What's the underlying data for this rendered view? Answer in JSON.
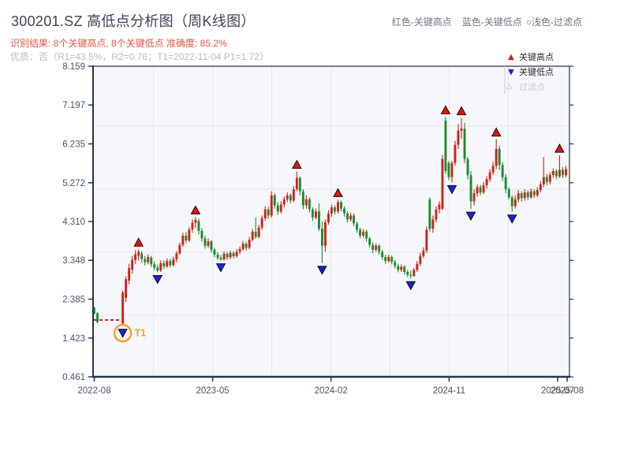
{
  "page": {
    "title": "300201.SZ 高低点分析图（周K线图）",
    "subtitle_red": "识别结果: 8个关键高点, 8个关键低点  准确度: 85.2%",
    "subtitle_gray": "优质：否（R1=43.5%，R2=0.76；T1=2022-11-04 P1=1.72）",
    "top_legend": [
      {
        "label": "红色-关键高点"
      },
      {
        "label": "蓝色-关键低点"
      },
      {
        "label": "○浅色-过滤点"
      }
    ]
  },
  "legend_box": {
    "items": [
      {
        "icon": "triangle-up-icon",
        "glyph": "▲",
        "label": "关键高点",
        "color": "#ea1205",
        "muted": false
      },
      {
        "icon": "triangle-down-icon",
        "glyph": "▼",
        "label": "关键低点",
        "color": "#1822d6",
        "muted": false
      },
      {
        "icon": "triangle-outline-icon",
        "glyph": "△",
        "label": "过滤点",
        "color": "#d8b0a6",
        "muted": true
      }
    ]
  },
  "chart_data": {
    "type": "candlestick",
    "title": "300201.SZ 高低点分析图（周K线图）",
    "y_axis": {
      "min": 0.461,
      "max": 8.159,
      "tick_labels": [
        "8.159",
        "7.197",
        "6.235",
        "5.272",
        "4.310",
        "3.348",
        "2.385",
        "1.423",
        "0.461"
      ]
    },
    "x_axis": {
      "tick_labels": [
        "2022-08",
        "2023-05",
        "2024-02",
        "2024-11",
        "2025-07",
        "2025-08"
      ],
      "tick_pos": [
        0,
        37.4,
        74.8,
        112.1,
        146.4,
        149.4
      ]
    },
    "grid": {
      "y_prices": [
        6.674,
        5.111,
        3.548,
        1.985
      ],
      "x_pos": [
        18.7,
        37.4,
        56.1,
        74.8,
        93.5,
        112.1,
        130.8
      ]
    },
    "colors": {
      "up": "#cf2218",
      "down": "#1d8a2e",
      "high_marker": "#ea1205",
      "low_marker": "#1822d6",
      "t1": "#f0a23c",
      "dash": "#c82020",
      "frame": "#25364a",
      "grid": "#e3e6ec",
      "plot_bg": "#f6f7fa",
      "tick_text": "#4b5563"
    },
    "candles": [
      [
        0,
        2.17,
        2.2,
        2.0,
        2.03
      ],
      [
        1,
        2.04,
        2.06,
        1.78,
        1.82
      ],
      [
        9,
        1.78,
        2.6,
        1.72,
        2.55
      ],
      [
        10,
        2.42,
        2.95,
        2.32,
        2.88
      ],
      [
        11,
        2.85,
        3.26,
        2.76,
        3.16
      ],
      [
        12,
        3.12,
        3.46,
        3.02,
        3.36
      ],
      [
        13,
        3.36,
        3.6,
        3.26,
        3.5
      ],
      [
        14,
        3.46,
        3.62,
        3.34,
        3.56
      ],
      [
        15,
        3.52,
        3.58,
        3.3,
        3.38
      ],
      [
        16,
        3.38,
        3.46,
        3.22,
        3.3
      ],
      [
        17,
        3.3,
        3.5,
        3.25,
        3.43
      ],
      [
        18,
        3.41,
        3.46,
        3.18,
        3.25
      ],
      [
        19,
        3.25,
        3.32,
        3.1,
        3.17
      ],
      [
        20,
        3.17,
        3.24,
        3.05,
        3.09
      ],
      [
        21,
        3.1,
        3.35,
        3.06,
        3.28
      ],
      [
        22,
        3.28,
        3.35,
        3.14,
        3.2
      ],
      [
        23,
        3.2,
        3.4,
        3.16,
        3.33
      ],
      [
        24,
        3.33,
        3.38,
        3.17,
        3.23
      ],
      [
        25,
        3.23,
        3.44,
        3.19,
        3.37
      ],
      [
        26,
        3.37,
        3.58,
        3.3,
        3.52
      ],
      [
        27,
        3.52,
        3.79,
        3.48,
        3.73
      ],
      [
        28,
        3.73,
        4.03,
        3.68,
        3.96
      ],
      [
        29,
        3.96,
        4.05,
        3.77,
        3.84
      ],
      [
        30,
        3.84,
        4.18,
        3.8,
        4.11
      ],
      [
        31,
        4.11,
        4.36,
        4.03,
        4.28
      ],
      [
        32,
        4.28,
        4.42,
        4.15,
        4.35
      ],
      [
        33,
        4.32,
        4.38,
        3.99,
        4.08
      ],
      [
        34,
        4.08,
        4.15,
        3.81,
        3.89
      ],
      [
        35,
        3.89,
        3.96,
        3.64,
        3.71
      ],
      [
        36,
        3.71,
        3.89,
        3.66,
        3.82
      ],
      [
        37,
        3.82,
        3.85,
        3.54,
        3.61
      ],
      [
        38,
        3.61,
        3.66,
        3.43,
        3.49
      ],
      [
        39,
        3.49,
        3.55,
        3.36,
        3.41
      ],
      [
        40,
        3.41,
        3.48,
        3.34,
        3.37
      ],
      [
        41,
        3.37,
        3.57,
        3.34,
        3.51
      ],
      [
        42,
        3.51,
        3.56,
        3.36,
        3.42
      ],
      [
        43,
        3.42,
        3.59,
        3.38,
        3.53
      ],
      [
        44,
        3.53,
        3.58,
        3.39,
        3.45
      ],
      [
        45,
        3.45,
        3.63,
        3.41,
        3.56
      ],
      [
        46,
        3.56,
        3.69,
        3.5,
        3.63
      ],
      [
        47,
        3.63,
        3.83,
        3.58,
        3.76
      ],
      [
        48,
        3.76,
        3.81,
        3.59,
        3.66
      ],
      [
        49,
        3.66,
        3.93,
        3.62,
        3.86
      ],
      [
        50,
        3.86,
        4.13,
        3.81,
        4.06
      ],
      [
        51,
        4.06,
        4.41,
        3.88,
        3.93
      ],
      [
        52,
        3.93,
        4.23,
        3.89,
        4.16
      ],
      [
        53,
        4.16,
        4.46,
        4.1,
        4.39
      ],
      [
        54,
        4.39,
        4.69,
        4.33,
        4.61
      ],
      [
        55,
        4.61,
        4.67,
        4.38,
        4.46
      ],
      [
        56,
        4.46,
        5.06,
        4.41,
        4.96
      ],
      [
        57,
        4.96,
        5.01,
        4.63,
        4.71
      ],
      [
        58,
        4.71,
        4.79,
        4.48,
        4.56
      ],
      [
        59,
        4.56,
        4.81,
        4.51,
        4.73
      ],
      [
        60,
        4.73,
        4.93,
        4.66,
        4.86
      ],
      [
        61,
        4.86,
        5.03,
        4.79,
        4.96
      ],
      [
        62,
        4.96,
        5.01,
        4.76,
        4.83
      ],
      [
        63,
        4.83,
        5.19,
        4.79,
        5.11
      ],
      [
        64,
        5.11,
        5.55,
        5.06,
        5.39
      ],
      [
        65,
        5.39,
        5.43,
        4.96,
        5.06
      ],
      [
        66,
        5.06,
        5.11,
        4.61,
        4.71
      ],
      [
        67,
        4.71,
        4.96,
        4.63,
        4.86
      ],
      [
        68,
        4.86,
        4.91,
        4.53,
        4.61
      ],
      [
        69,
        4.61,
        4.66,
        4.33,
        4.41
      ],
      [
        70,
        4.41,
        4.63,
        4.36,
        4.56
      ],
      [
        71,
        4.56,
        4.76,
        4.08,
        4.13
      ],
      [
        72,
        4.13,
        4.31,
        3.28,
        3.71
      ],
      [
        73,
        3.71,
        4.36,
        3.56,
        4.29
      ],
      [
        74,
        4.29,
        4.59,
        4.23,
        4.51
      ],
      [
        75,
        4.51,
        4.73,
        4.43,
        4.66
      ],
      [
        76,
        4.66,
        4.71,
        4.49,
        4.56
      ],
      [
        77,
        4.56,
        4.85,
        4.51,
        4.79
      ],
      [
        78,
        4.79,
        4.83,
        4.56,
        4.63
      ],
      [
        79,
        4.63,
        4.69,
        4.43,
        4.51
      ],
      [
        80,
        4.51,
        4.56,
        4.29,
        4.36
      ],
      [
        81,
        4.36,
        4.53,
        4.31,
        4.46
      ],
      [
        82,
        4.46,
        4.51,
        4.19,
        4.26
      ],
      [
        83,
        4.26,
        4.31,
        4.03,
        4.11
      ],
      [
        84,
        4.11,
        4.16,
        3.89,
        3.96
      ],
      [
        85,
        3.96,
        4.13,
        3.91,
        4.06
      ],
      [
        86,
        4.06,
        4.11,
        3.81,
        3.89
      ],
      [
        87,
        3.89,
        3.93,
        3.66,
        3.73
      ],
      [
        88,
        3.73,
        3.79,
        3.53,
        3.61
      ],
      [
        89,
        3.61,
        3.77,
        3.56,
        3.71
      ],
      [
        90,
        3.71,
        3.75,
        3.49,
        3.56
      ],
      [
        91,
        3.56,
        3.61,
        3.36,
        3.43
      ],
      [
        92,
        3.43,
        3.49,
        3.26,
        3.33
      ],
      [
        93,
        3.33,
        3.49,
        3.29,
        3.43
      ],
      [
        94,
        3.43,
        3.47,
        3.25,
        3.31
      ],
      [
        95,
        3.31,
        3.36,
        3.15,
        3.21
      ],
      [
        96,
        3.21,
        3.26,
        3.05,
        3.11
      ],
      [
        97,
        3.11,
        3.25,
        3.06,
        3.19
      ],
      [
        98,
        3.19,
        3.23,
        2.99,
        3.06
      ],
      [
        99,
        3.06,
        3.11,
        2.93,
        2.99
      ],
      [
        100,
        2.99,
        3.09,
        2.9,
        2.96
      ],
      [
        101,
        2.96,
        3.16,
        2.94,
        3.11
      ],
      [
        102,
        3.11,
        3.33,
        3.06,
        3.26
      ],
      [
        103,
        3.26,
        3.53,
        3.21,
        3.46
      ],
      [
        104,
        3.46,
        3.67,
        3.41,
        3.59
      ],
      [
        105,
        3.59,
        4.19,
        3.53,
        4.11
      ],
      [
        106,
        4.86,
        4.91,
        4.06,
        4.13
      ],
      [
        107,
        4.13,
        4.46,
        4.03,
        4.36
      ],
      [
        108,
        4.36,
        4.69,
        4.29,
        4.61
      ],
      [
        109,
        4.61,
        4.81,
        4.51,
        4.73
      ],
      [
        110,
        4.63,
        5.96,
        4.59,
        5.86
      ],
      [
        111,
        6.81,
        6.9,
        5.49,
        5.56
      ],
      [
        112,
        5.76,
        5.81,
        5.33,
        5.41
      ],
      [
        113,
        5.41,
        5.81,
        5.28,
        5.76
      ],
      [
        114,
        5.76,
        6.31,
        5.69,
        6.21
      ],
      [
        115,
        6.21,
        6.73,
        6.11,
        6.56
      ],
      [
        116,
        6.56,
        6.88,
        6.36,
        6.61
      ],
      [
        117,
        6.61,
        6.76,
        5.76,
        5.86
      ],
      [
        118,
        5.86,
        5.91,
        5.36,
        5.46
      ],
      [
        119,
        5.46,
        5.56,
        4.62,
        4.81
      ],
      [
        120,
        4.81,
        5.11,
        4.71,
        5.01
      ],
      [
        121,
        5.01,
        5.23,
        4.93,
        5.16
      ],
      [
        122,
        5.16,
        5.21,
        4.96,
        5.03
      ],
      [
        123,
        5.03,
        5.29,
        4.99,
        5.21
      ],
      [
        124,
        5.21,
        5.43,
        5.13,
        5.36
      ],
      [
        125,
        5.36,
        5.61,
        5.29,
        5.53
      ],
      [
        126,
        5.53,
        5.79,
        5.46,
        5.69
      ],
      [
        127,
        5.69,
        6.35,
        5.61,
        6.11
      ],
      [
        128,
        6.11,
        6.19,
        5.59,
        5.71
      ],
      [
        129,
        5.71,
        5.79,
        5.31,
        5.41
      ],
      [
        130,
        5.41,
        5.49,
        5.01,
        5.11
      ],
      [
        131,
        5.11,
        5.16,
        4.86,
        4.91
      ],
      [
        132,
        4.91,
        4.96,
        4.55,
        4.69
      ],
      [
        133,
        4.69,
        4.96,
        4.63,
        4.86
      ],
      [
        134,
        4.86,
        5.09,
        4.79,
        5.01
      ],
      [
        135,
        5.01,
        5.06,
        4.81,
        4.89
      ],
      [
        136,
        4.89,
        5.11,
        4.83,
        5.03
      ],
      [
        137,
        5.03,
        5.09,
        4.85,
        4.91
      ],
      [
        138,
        4.91,
        5.13,
        4.87,
        5.06
      ],
      [
        139,
        5.06,
        5.11,
        4.89,
        4.96
      ],
      [
        140,
        4.96,
        5.16,
        4.91,
        5.09
      ],
      [
        141,
        5.09,
        5.31,
        5.03,
        5.23
      ],
      [
        142,
        5.23,
        5.91,
        5.16,
        5.41
      ],
      [
        143,
        5.41,
        5.49,
        5.21,
        5.29
      ],
      [
        144,
        5.29,
        5.53,
        5.23,
        5.46
      ],
      [
        145,
        5.46,
        5.63,
        5.39,
        5.56
      ],
      [
        146,
        5.56,
        5.61,
        5.36,
        5.43
      ],
      [
        147,
        5.43,
        5.95,
        5.39,
        5.59
      ],
      [
        148,
        5.59,
        5.66,
        5.39,
        5.46
      ],
      [
        149,
        5.46,
        5.69,
        5.41,
        5.61
      ]
    ],
    "key_high_points": [
      {
        "pos": 14,
        "price": 3.62
      },
      {
        "pos": 32,
        "price": 4.42
      },
      {
        "pos": 64,
        "price": 5.55
      },
      {
        "pos": 77,
        "price": 4.85
      },
      {
        "pos": 111,
        "price": 6.9
      },
      {
        "pos": 116,
        "price": 6.88
      },
      {
        "pos": 127,
        "price": 6.35
      },
      {
        "pos": 147,
        "price": 5.95
      }
    ],
    "key_low_points": [
      {
        "pos": 9,
        "price": 1.72
      },
      {
        "pos": 20,
        "price": 3.05
      },
      {
        "pos": 40,
        "price": 3.34
      },
      {
        "pos": 72,
        "price": 3.28
      },
      {
        "pos": 100,
        "price": 2.9
      },
      {
        "pos": 113,
        "price": 5.28
      },
      {
        "pos": 119,
        "price": 4.62
      },
      {
        "pos": 132,
        "price": 4.55
      }
    ],
    "t1": {
      "label": "T1",
      "pos": 9,
      "price": 1.72,
      "dash_price": 1.87
    }
  }
}
